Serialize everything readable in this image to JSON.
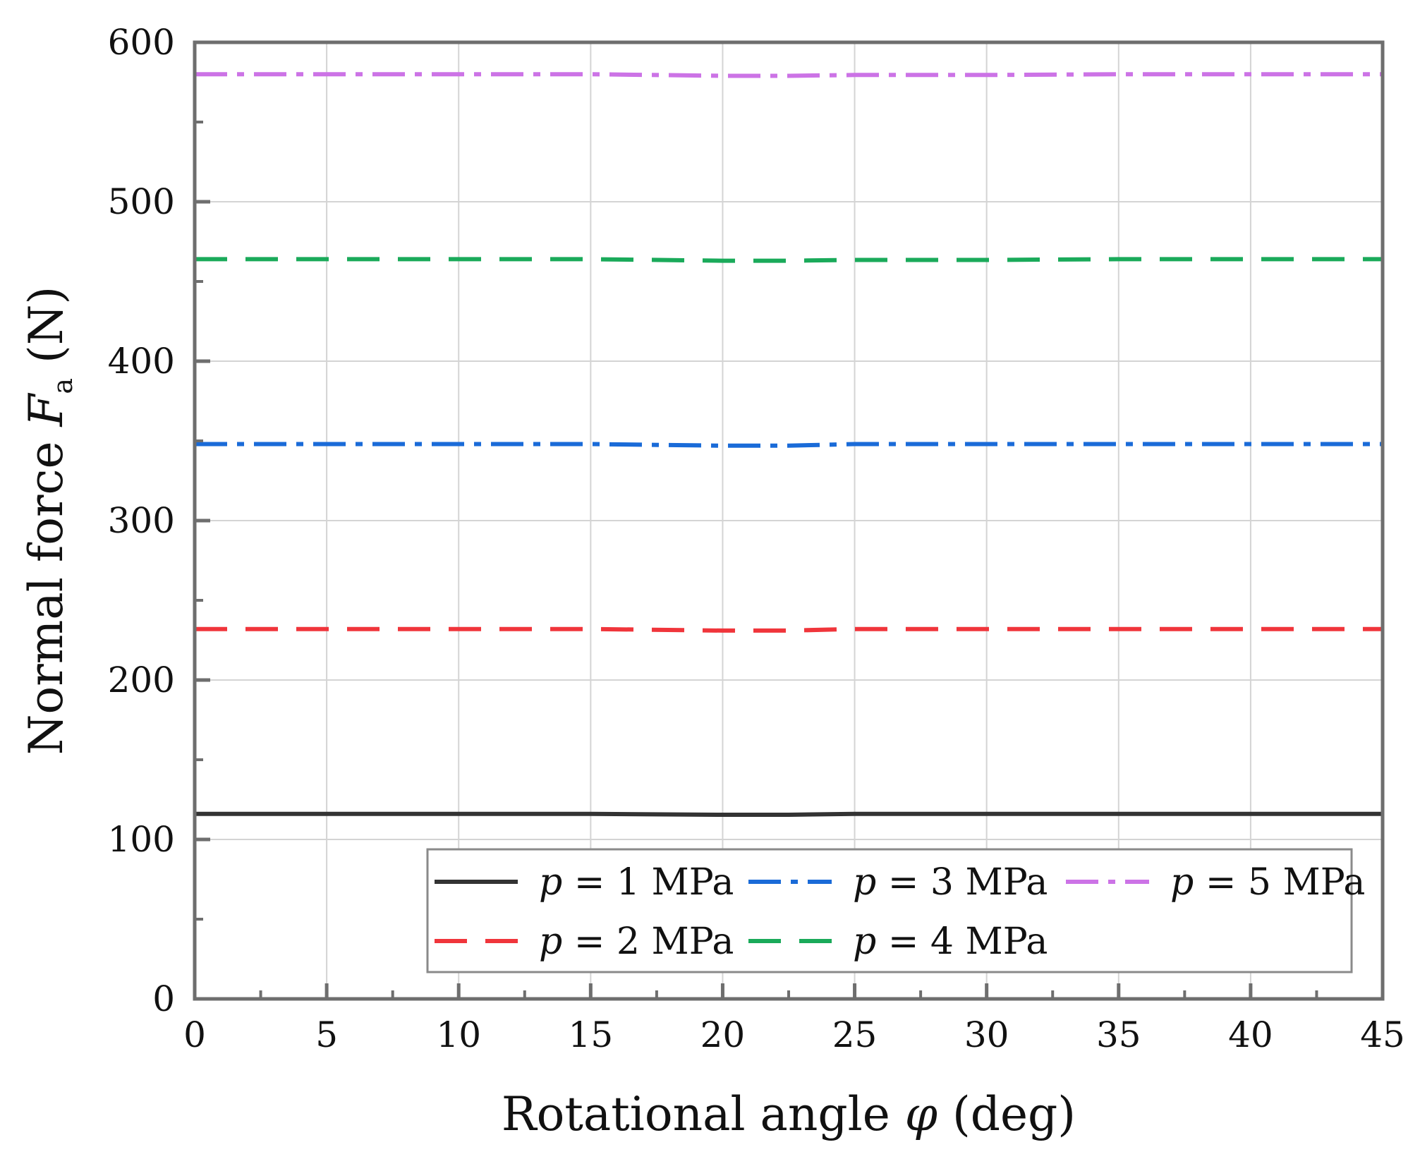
{
  "chart_data": {
    "type": "line",
    "xlabel": {
      "main": "Rotational angle ",
      "symbol": "φ",
      "unit": " (deg)"
    },
    "ylabel": {
      "main": "Normal force ",
      "symbol": "F",
      "subscript": "a",
      "unit": " (N)"
    },
    "xlim": [
      0,
      45
    ],
    "ylim": [
      0,
      600
    ],
    "x_ticks": [
      "0",
      "5",
      "10",
      "15",
      "20",
      "25",
      "30",
      "35",
      "40",
      "45"
    ],
    "y_ticks": [
      "0",
      "100",
      "200",
      "300",
      "400",
      "500",
      "600"
    ],
    "grid": true,
    "legend_position": "bottom-right",
    "legend_var": "p",
    "series": [
      {
        "name": "p = 1 MPa",
        "label": " = 1 MPa",
        "color": "#333333",
        "dash": "solid",
        "x": [
          0,
          5,
          10,
          15,
          20,
          22.5,
          25,
          30,
          35,
          40,
          45
        ],
        "y": [
          116,
          116,
          116,
          116,
          115.5,
          115.5,
          116,
          116,
          116,
          116,
          116
        ]
      },
      {
        "name": "p = 2 MPa",
        "label": " = 2 MPa",
        "color": "#f0353b",
        "dash": "dash",
        "x": [
          0,
          5,
          10,
          15,
          20,
          22.5,
          25,
          30,
          35,
          40,
          45
        ],
        "y": [
          232,
          232,
          232,
          232,
          231,
          231,
          232,
          232,
          232,
          232,
          232
        ]
      },
      {
        "name": "p = 3 MPa",
        "label": " = 3 MPa",
        "color": "#1a6bd8",
        "dash": "dashdot",
        "x": [
          0,
          5,
          10,
          15,
          20,
          22.5,
          25,
          30,
          35,
          40,
          45
        ],
        "y": [
          348,
          348,
          348,
          348,
          347,
          347,
          348,
          348,
          348,
          348,
          348
        ]
      },
      {
        "name": "p = 4 MPa",
        "label": " = 4 MPa",
        "color": "#1aaa5a",
        "dash": "dash",
        "x": [
          0,
          5,
          10,
          15,
          20,
          22.5,
          25,
          30,
          35,
          40,
          45
        ],
        "y": [
          464,
          464,
          464,
          464,
          463,
          463,
          463.5,
          463.5,
          464,
          464,
          464
        ]
      },
      {
        "name": "p = 5 MPa",
        "label": " = 5 MPa",
        "color": "#cc73e6",
        "dash": "dashdot",
        "x": [
          0,
          5,
          10,
          15,
          20,
          22.5,
          25,
          30,
          35,
          40,
          45
        ],
        "y": [
          580,
          580,
          580,
          580,
          579,
          579,
          579.5,
          579.5,
          580,
          580,
          580
        ]
      }
    ]
  }
}
